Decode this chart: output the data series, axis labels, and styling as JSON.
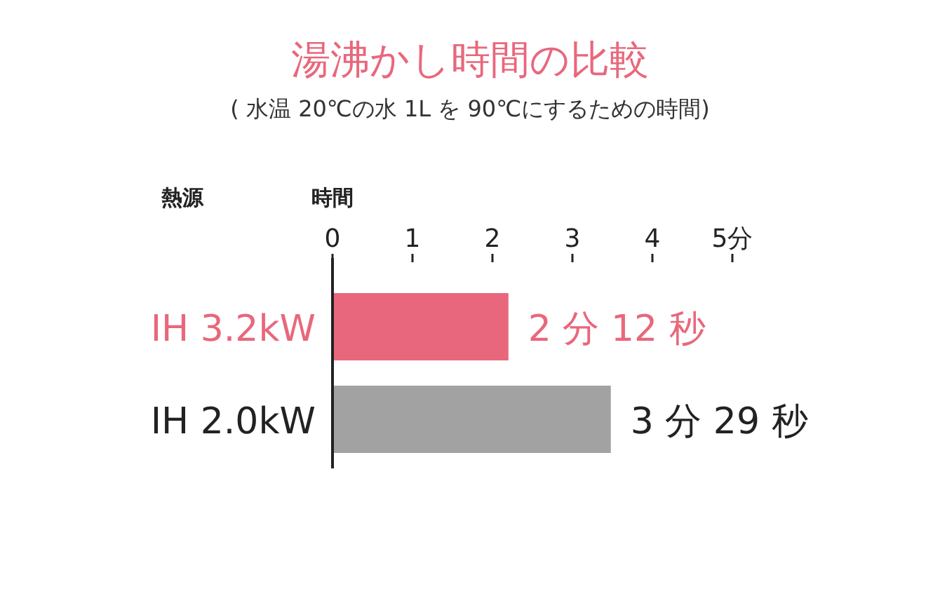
{
  "chart_data": {
    "type": "bar",
    "orientation": "horizontal",
    "title": "湯沸かし時間の比較",
    "subtitle": "( 水温 20℃の水 1L を 90℃にするための時間)",
    "xlabel": "時間",
    "ylabel": "熱源",
    "categories": [
      "IH 3.2kW",
      "IH 2.0kW"
    ],
    "values": [
      2.2,
      3.48
    ],
    "value_labels": [
      "2 分 12 秒",
      "3 分 29 秒"
    ],
    "colors": [
      "#e9677c",
      "#a3a2a3"
    ],
    "xlim": [
      0,
      5
    ],
    "xticks": [
      0,
      1,
      2,
      3,
      4,
      {
        "value": 5,
        "label": "5分"
      }
    ]
  }
}
